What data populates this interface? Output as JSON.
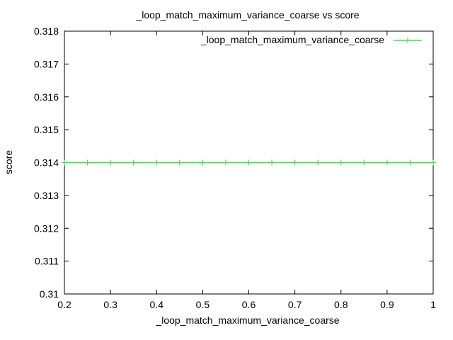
{
  "chart_data": {
    "type": "line",
    "title": "_loop_match_maximum_variance_coarse vs score",
    "xlabel": "_loop_match_maximum_variance_coarse",
    "ylabel": "score",
    "xlim": [
      0.2,
      1.0
    ],
    "ylim": [
      0.31,
      0.318
    ],
    "x_ticks": [
      "0.2",
      "0.3",
      "0.4",
      "0.5",
      "0.6",
      "0.7",
      "0.8",
      "0.9",
      "1"
    ],
    "y_ticks": [
      "0.31",
      "0.311",
      "0.312",
      "0.313",
      "0.314",
      "0.315",
      "0.316",
      "0.317",
      "0.318"
    ],
    "grid": false,
    "legend_position": "top-right",
    "series": [
      {
        "name": "_loop_match_maximum_variance_coarse",
        "color": "#66cc66",
        "marker": "plus",
        "x": [
          0.2,
          0.25,
          0.3,
          0.35,
          0.4,
          0.45,
          0.5,
          0.55,
          0.6,
          0.65,
          0.7,
          0.75,
          0.8,
          0.85,
          0.9,
          0.95,
          1.0
        ],
        "y": [
          0.314,
          0.314,
          0.314,
          0.314,
          0.314,
          0.314,
          0.314,
          0.314,
          0.314,
          0.314,
          0.314,
          0.314,
          0.314,
          0.314,
          0.314,
          0.314,
          0.314
        ]
      }
    ]
  }
}
